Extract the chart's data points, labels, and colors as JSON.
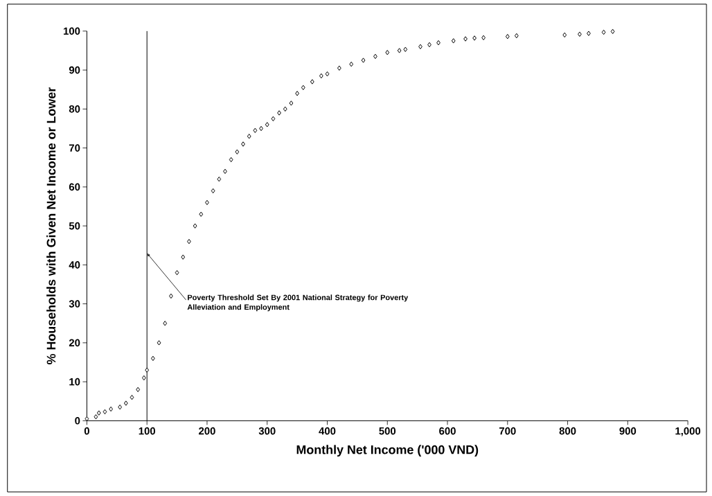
{
  "chart_data": {
    "type": "scatter",
    "xlabel": "Monthly Net Income ('000 VND)",
    "ylabel": "% Households with Given Net Income or Lower",
    "x": [
      0,
      15,
      20,
      30,
      40,
      55,
      65,
      75,
      85,
      95,
      100,
      110,
      120,
      130,
      140,
      150,
      160,
      170,
      180,
      190,
      200,
      210,
      220,
      230,
      240,
      250,
      260,
      270,
      280,
      290,
      300,
      310,
      320,
      330,
      340,
      350,
      360,
      375,
      390,
      400,
      420,
      440,
      460,
      480,
      500,
      520,
      530,
      555,
      570,
      585,
      610,
      630,
      645,
      660,
      700,
      715,
      795,
      820,
      835,
      860,
      875
    ],
    "values": [
      0.5,
      1,
      2,
      2.3,
      3,
      3.5,
      4.5,
      6,
      8,
      11,
      13,
      16,
      20,
      25,
      32,
      38,
      42,
      46,
      50,
      53,
      56,
      59,
      62,
      64,
      67,
      69,
      71,
      73,
      74.5,
      75,
      76,
      77.5,
      79,
      80,
      81.5,
      84,
      85.5,
      87,
      88.5,
      89,
      90.5,
      91.5,
      92.5,
      93.5,
      94.5,
      95,
      95.3,
      96,
      96.5,
      97,
      97.5,
      98,
      98.2,
      98.3,
      98.6,
      98.8,
      99,
      99.2,
      99.4,
      99.7,
      99.9
    ],
    "color": "#000000",
    "marker": "diamond",
    "xlim": [
      0,
      1000
    ],
    "xticks": [
      0,
      100,
      200,
      300,
      400,
      500,
      600,
      700,
      800,
      900,
      {
        "value": 1000,
        "label": "1,000"
      }
    ],
    "ylim": [
      0,
      100
    ],
    "yticks": [
      0,
      10,
      20,
      30,
      40,
      50,
      60,
      70,
      80,
      90,
      100
    ],
    "grid": false,
    "ref_lines": [
      {
        "axis": "x",
        "value": 100,
        "color": "#000000"
      }
    ],
    "annotations": [
      {
        "text": "Poverty Threshold Set By 2001 National Strategy for Poverty Alleviation and Employment",
        "x": 100,
        "y": 43
      }
    ]
  }
}
